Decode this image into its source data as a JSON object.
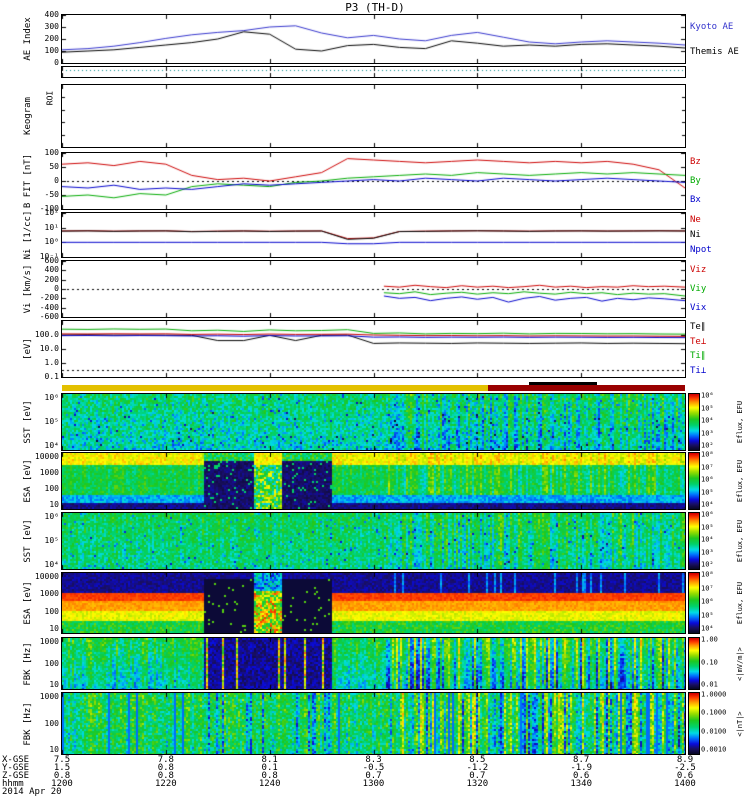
{
  "title": "P3 (TH-D)",
  "chart_data": {
    "type": "multi-panel",
    "x_axis": {
      "tick_minutes": [
        0,
        20,
        40,
        60,
        80,
        100,
        120
      ],
      "start_hhmm": "1200",
      "end_hhmm": "1400"
    },
    "panels": {
      "ae": {
        "type": "line",
        "ylabel": "AE Index",
        "scale": "linear",
        "ylim": [
          0,
          400
        ],
        "yticks": [
          [
            "400",
            400
          ],
          [
            "300",
            300
          ],
          [
            "200",
            200
          ],
          [
            "100",
            100
          ],
          [
            "0",
            0
          ]
        ],
        "x_step": 5,
        "series": [
          {
            "name": "Kyoto AE",
            "color": "#3333cc",
            "values": [
              110,
              120,
              140,
              170,
              205,
              235,
              255,
              270,
              300,
              310,
              250,
              210,
              230,
              200,
              185,
              230,
              255,
              215,
              175,
              160,
              175,
              185,
              175,
              165,
              150
            ]
          },
          {
            "name": "Themis AE",
            "color": "#000000",
            "values": [
              90,
              100,
              110,
              130,
              150,
              170,
              200,
              260,
              240,
              115,
              100,
              145,
              155,
              130,
              120,
              185,
              165,
              140,
              150,
              140,
              155,
              160,
              150,
              140,
              125
            ]
          }
        ],
        "legend": [
          {
            "label": "Kyoto AE",
            "color": "#3333cc"
          },
          {
            "label": "Themis AE",
            "color": "#000000"
          }
        ]
      },
      "flag": {
        "type": "flag",
        "line_color": "#008888"
      },
      "keo": {
        "type": "empty",
        "ylabel": "Keogram",
        "corner": "ROI"
      },
      "bfit": {
        "type": "line",
        "ylabel": "B FIT [nT]",
        "scale": "linear",
        "ylim": [
          -100,
          100
        ],
        "yticks": [
          [
            "100",
            100
          ],
          [
            "50",
            50
          ],
          [
            "0",
            0
          ],
          [
            "-50",
            -50
          ],
          [
            "-100",
            -100
          ]
        ],
        "dash_at": 0,
        "x_step": 5,
        "series": [
          {
            "name": "Bz",
            "color": "#cc0000",
            "values": [
              60,
              65,
              55,
              70,
              60,
              20,
              5,
              10,
              0,
              15,
              30,
              80,
              75,
              70,
              65,
              70,
              75,
              70,
              65,
              70,
              65,
              70,
              60,
              40,
              -25
            ]
          },
          {
            "name": "By",
            "color": "#00aa00",
            "values": [
              -55,
              -50,
              -60,
              -45,
              -50,
              -20,
              -10,
              -15,
              -20,
              -5,
              0,
              10,
              15,
              20,
              25,
              20,
              30,
              25,
              20,
              25,
              30,
              25,
              30,
              25,
              20
            ]
          },
          {
            "name": "Bx",
            "color": "#0000cc",
            "values": [
              -20,
              -25,
              -15,
              -30,
              -25,
              -30,
              -20,
              -10,
              -15,
              -10,
              -5,
              0,
              5,
              0,
              10,
              5,
              0,
              10,
              5,
              0,
              5,
              10,
              5,
              0,
              -5
            ]
          }
        ],
        "legend": [
          {
            "label": "Bz",
            "color": "#cc0000"
          },
          {
            "label": "By",
            "color": "#00aa00"
          },
          {
            "label": "Bx",
            "color": "#0000cc"
          }
        ]
      },
      "ni": {
        "type": "line",
        "ylabel": "Ni [1/cc]",
        "scale": "log",
        "ylim": [
          0.1,
          100
        ],
        "yticks": [
          [
            "10²",
            100
          ],
          [
            "10¹",
            10
          ],
          [
            "10⁰",
            1
          ],
          [
            "10⁻¹",
            0.1
          ]
        ],
        "x_step": 5,
        "series": [
          {
            "name": "Ne",
            "color": "#cc0000",
            "values": [
              6,
              6.2,
              5.8,
              6,
              6.1,
              5.5,
              5.8,
              6,
              5.7,
              5.9,
              6,
              1.8,
              2,
              5.5,
              5.8,
              6,
              6.2,
              6,
              5.8,
              6,
              6.1,
              5.9,
              6,
              6.2,
              6
            ]
          },
          {
            "name": "Ni",
            "color": "#000000",
            "values": [
              5.8,
              6,
              5.6,
              5.9,
              6,
              5.3,
              5.6,
              5.9,
              5.5,
              5.8,
              5.9,
              1.6,
              1.9,
              5.4,
              5.6,
              5.9,
              6.1,
              5.9,
              5.6,
              5.9,
              6,
              5.8,
              5.9,
              6,
              5.9
            ]
          },
          {
            "name": "Npot",
            "color": "#0000cc",
            "values": [
              1,
              1,
              1,
              1,
              1,
              1,
              1,
              1,
              1,
              1,
              1,
              0.8,
              0.8,
              1,
              1,
              1,
              1,
              1,
              1,
              1,
              1,
              1,
              1,
              1,
              1
            ]
          }
        ],
        "legend": [
          {
            "label": "Ne",
            "color": "#cc0000"
          },
          {
            "label": "Ni",
            "color": "#000000"
          },
          {
            "label": "Npot",
            "color": "#0000cc"
          }
        ]
      },
      "vi": {
        "type": "line",
        "ylabel": "Vi [km/s]",
        "scale": "linear",
        "ylim": [
          -600,
          600
        ],
        "yticks": [
          [
            "600",
            600
          ],
          [
            "400",
            400
          ],
          [
            "200",
            200
          ],
          [
            "0",
            0
          ],
          [
            "-200",
            -200
          ],
          [
            "-400",
            -400
          ],
          [
            "-600",
            -600
          ]
        ],
        "dash_at": 0,
        "series": [
          {
            "name": "Viz",
            "color": "#cc0000",
            "xs": [
              62,
              65,
              68,
              71,
              74,
              77,
              80,
              83,
              86,
              89,
              92,
              95,
              98,
              101,
              104,
              107,
              110,
              113,
              116,
              120
            ],
            "values": [
              60,
              40,
              80,
              50,
              30,
              70,
              40,
              60,
              30,
              50,
              80,
              40,
              60,
              30,
              50,
              40,
              70,
              50,
              60,
              40
            ]
          },
          {
            "name": "Viy",
            "color": "#00aa00",
            "xs": [
              62,
              65,
              68,
              71,
              74,
              77,
              80,
              83,
              86,
              89,
              92,
              95,
              98,
              101,
              104,
              107,
              110,
              113,
              116,
              120
            ],
            "values": [
              -80,
              -100,
              -60,
              -120,
              -90,
              -70,
              -110,
              -80,
              -100,
              -60,
              -90,
              -110,
              -70,
              -100,
              -80,
              -120,
              -90,
              -110,
              -100,
              -150
            ]
          },
          {
            "name": "Vix",
            "color": "#0000cc",
            "xs": [
              62,
              65,
              68,
              71,
              74,
              77,
              80,
              83,
              86,
              89,
              92,
              95,
              98,
              101,
              104,
              107,
              110,
              113,
              116,
              120
            ],
            "values": [
              -150,
              -200,
              -180,
              -250,
              -200,
              -170,
              -220,
              -180,
              -280,
              -200,
              -160,
              -240,
              -200,
              -180,
              -260,
              -200,
              -230,
              -190,
              -210,
              -250
            ]
          }
        ],
        "legend": [
          {
            "label": "Viz",
            "color": "#cc0000"
          },
          {
            "label": "Viy",
            "color": "#00aa00"
          },
          {
            "label": "Vix",
            "color": "#0000cc"
          }
        ]
      },
      "temp": {
        "type": "line",
        "ylabel": "[eV]",
        "scale": "log",
        "ylim": [
          0.1,
          1000
        ],
        "yticks": [
          [
            "100.0",
            100
          ],
          [
            "10.0",
            10
          ],
          [
            "1.0",
            1
          ],
          [
            "0.1",
            0.1
          ]
        ],
        "dash_at": 0.3,
        "x_step": 5,
        "series": [
          {
            "name": "Te∥",
            "color": "#000000",
            "values": [
              100,
              105,
              98,
              100,
              97,
              95,
              40,
              40,
              95,
              40,
              95,
              100,
              25,
              27,
              26,
              25,
              27,
              26,
              25,
              26,
              27,
              25,
              26,
              25,
              24
            ]
          },
          {
            "name": "Te⊥",
            "color": "#cc0000",
            "values": [
              120,
              118,
              122,
              119,
              121,
              110,
              115,
              108,
              117,
              110,
              112,
              115,
              100,
              95,
              90,
              92,
              88,
              90,
              85,
              88,
              86,
              84,
              85,
              82,
              80
            ]
          },
          {
            "name": "Ti∥",
            "color": "#00aa00",
            "values": [
              260,
              250,
              270,
              255,
              265,
              200,
              220,
              180,
              230,
              200,
              210,
              240,
              130,
              140,
              120,
              130,
              125,
              135,
              120,
              130,
              128,
              122,
              125,
              118,
              115
            ]
          },
          {
            "name": "Ti⊥",
            "color": "#0000cc",
            "values": [
              90,
              92,
              88,
              91,
              89,
              85,
              88,
              82,
              90,
              85,
              86,
              88,
              70,
              72,
              68,
              70,
              69,
              71,
              68,
              70,
              69,
              67,
              68,
              66,
              65
            ]
          }
        ],
        "legend": [
          {
            "label": "Te∥",
            "color": "#000000"
          },
          {
            "label": "Te⊥",
            "color": "#cc0000"
          },
          {
            "label": "Ti∥",
            "color": "#00aa00"
          },
          {
            "label": "Ti⊥",
            "color": "#0000cc"
          }
        ]
      },
      "sst_i": {
        "type": "heat",
        "ylabel": "SST [eV]",
        "yticks": [
          "10⁶",
          "10⁵",
          "10⁴"
        ],
        "seed": 11,
        "profile": "sst_i",
        "colorbar": {
          "ticks": [
            "10⁶",
            "10⁵",
            "10⁴",
            "10³",
            "10²"
          ],
          "label": "Eflux, EFU"
        }
      },
      "esa_i": {
        "type": "heat",
        "ylabel": "ESA [eV]",
        "yticks": [
          "10000",
          "1000",
          "100",
          "10"
        ],
        "seed": 22,
        "profile": "esa_i",
        "colorbar": {
          "ticks": [
            "10⁸",
            "10⁷",
            "10⁶",
            "10⁵",
            "10⁴"
          ],
          "label": "Eflux, EFU"
        }
      },
      "sst_e": {
        "type": "heat",
        "ylabel": "SST [eV]",
        "yticks": [
          "10⁶",
          "10⁵",
          "10⁴"
        ],
        "seed": 33,
        "profile": "sst_e",
        "colorbar": {
          "ticks": [
            "10⁶",
            "10⁵",
            "10⁴",
            "10³",
            "10²"
          ],
          "label": "Eflux, EFU"
        }
      },
      "esa_e": {
        "type": "heat",
        "ylabel": "ESA [eV]",
        "yticks": [
          "10000",
          "1000",
          "100",
          "10"
        ],
        "seed": 44,
        "profile": "esa_e",
        "colorbar": {
          "ticks": [
            "10⁸",
            "10⁷",
            "10⁶",
            "10⁵",
            "10⁴"
          ],
          "label": "Eflux, EFU"
        }
      },
      "fbk1": {
        "type": "heat",
        "ylabel": "FBK [Hz]",
        "yticks": [
          "1000",
          "100",
          "10"
        ],
        "seed": 55,
        "profile": "fbk1",
        "colorbar": {
          "ticks": [
            "1.00",
            "0.10",
            "0.01"
          ],
          "label": "<|mV/m|>"
        }
      },
      "fbk2": {
        "type": "heat",
        "ylabel": "FBK [Hz]",
        "yticks": [
          "1000",
          "100",
          "10"
        ],
        "seed": 66,
        "profile": "fbk2",
        "colorbar": {
          "ticks": [
            "1.0000",
            "0.1000",
            "0.0100",
            "0.0010"
          ],
          "label": "<|nT|>"
        }
      }
    },
    "data_gaps_minutes": [
      [
        27,
        37
      ],
      [
        42,
        52
      ]
    ],
    "mode_change_minute": 52,
    "mode_bar": {
      "segments": [
        {
          "color": "#e3c000",
          "from": 0,
          "to": 82
        },
        {
          "color": "#990000",
          "from": 82,
          "to": 120
        }
      ],
      "burst": {
        "color": "#000000",
        "from": 90,
        "to": 103
      }
    },
    "bottom": {
      "rows": [
        {
          "label": "X-GSE",
          "values": [
            "7.5",
            "7.8",
            "8.1",
            "8.3",
            "8.5",
            "8.7",
            "8.9"
          ]
        },
        {
          "label": "Y-GSE",
          "values": [
            "1.5",
            "0.8",
            "0.1",
            "-0.5",
            "-1.2",
            "-1.9",
            "-2.5"
          ]
        },
        {
          "label": "Z-GSE",
          "values": [
            "0.8",
            "0.8",
            "0.8",
            "0.7",
            "0.7",
            "0.6",
            "0.6"
          ]
        },
        {
          "label": "hhmm",
          "values": [
            "1200",
            "1220",
            "1240",
            "1300",
            "1320",
            "1340",
            "1400"
          ]
        }
      ],
      "date": "2014 Apr 20"
    }
  }
}
